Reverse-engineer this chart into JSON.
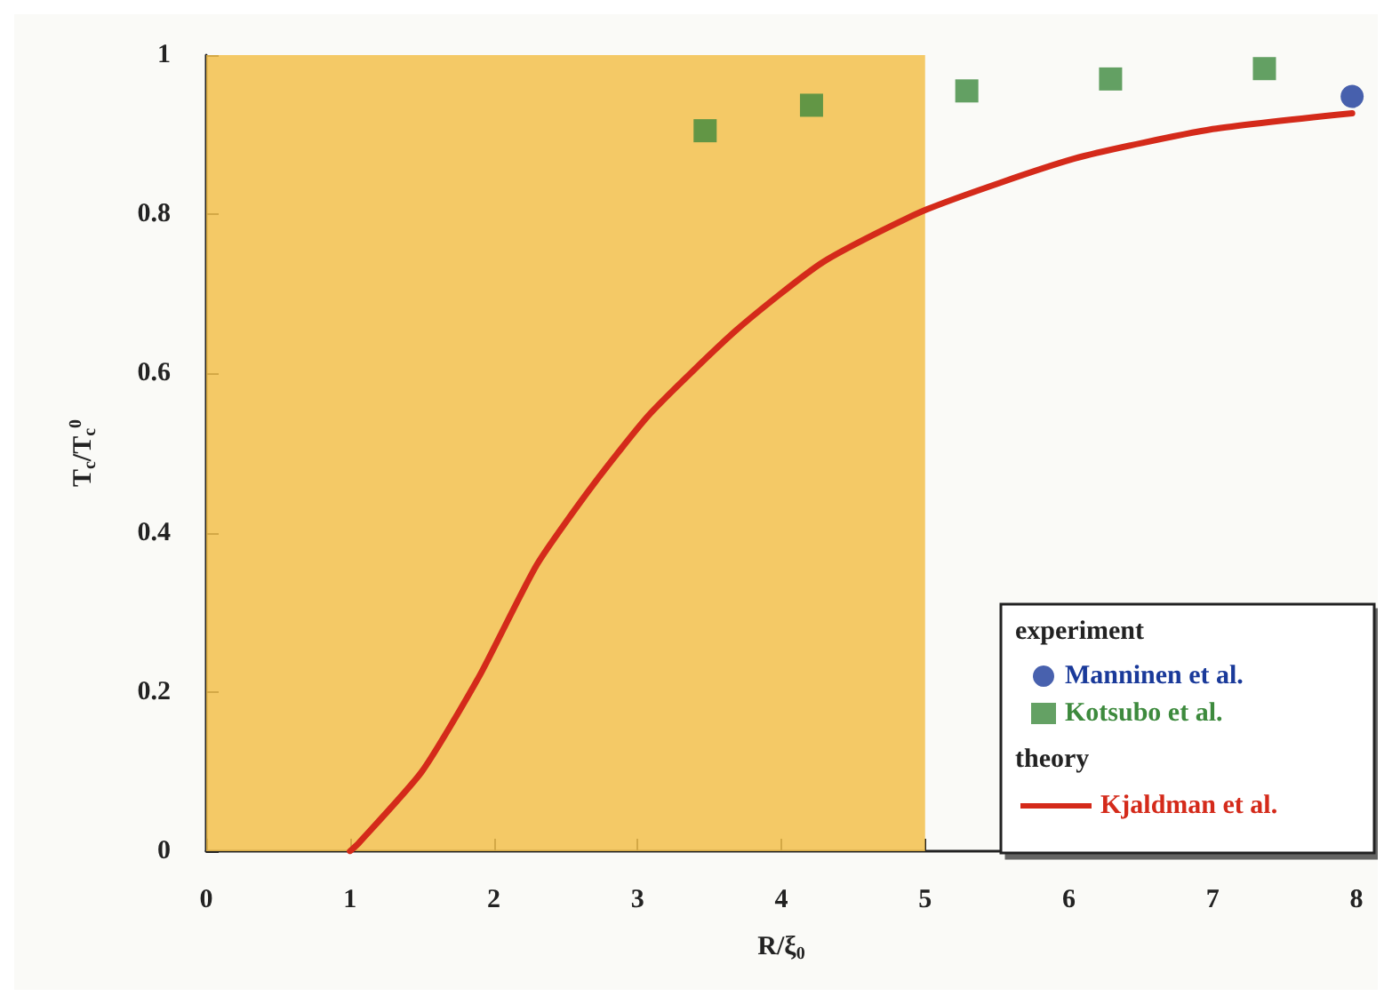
{
  "chart_data": {
    "type": "scatter",
    "xlabel": "R/ξ$_{0}$",
    "ylabel": "T$_{c}$/T$_{c}$$^{0}$",
    "xlim": [
      0,
      8
    ],
    "ylim": [
      0,
      1
    ],
    "xticks": [
      0,
      1,
      2,
      3,
      4,
      5,
      6,
      7,
      8
    ],
    "yticks": [
      0,
      0.2,
      0.4,
      0.6,
      0.8,
      1
    ],
    "grid": false,
    "legend": "bottom right",
    "annotations": [
      "experiment",
      "theory"
    ],
    "bands": [
      {
        "axis": "x",
        "from": 0,
        "to": 5,
        "color": "#f2c04c"
      }
    ],
    "series": [
      {
        "name": "Manninen et al.",
        "marker": "circle",
        "color": "#1a3a9a",
        "x": [
          7.97
        ],
        "values": [
          0.948
        ]
      },
      {
        "name": "Kotsubo et al.",
        "marker": "square",
        "color": "#3d8a3d",
        "x": [
          3.47,
          4.21,
          5.29,
          6.29,
          7.36
        ],
        "values": [
          0.905,
          0.937,
          0.955,
          0.97,
          0.983
        ]
      },
      {
        "name": "Kjaldman et al.",
        "type": "line",
        "marker": "none",
        "color": "#d42a1a",
        "x": [
          1.0,
          1.06,
          1.5,
          1.9,
          2.3,
          2.69,
          3.09,
          3.69,
          4.29,
          5.01,
          6.04,
          7.0,
          7.97
        ],
        "values": [
          0,
          0.01,
          0.1,
          0.22,
          0.36,
          0.46,
          0.55,
          0.655,
          0.74,
          0.806,
          0.87,
          0.907,
          0.927
        ]
      }
    ]
  }
}
